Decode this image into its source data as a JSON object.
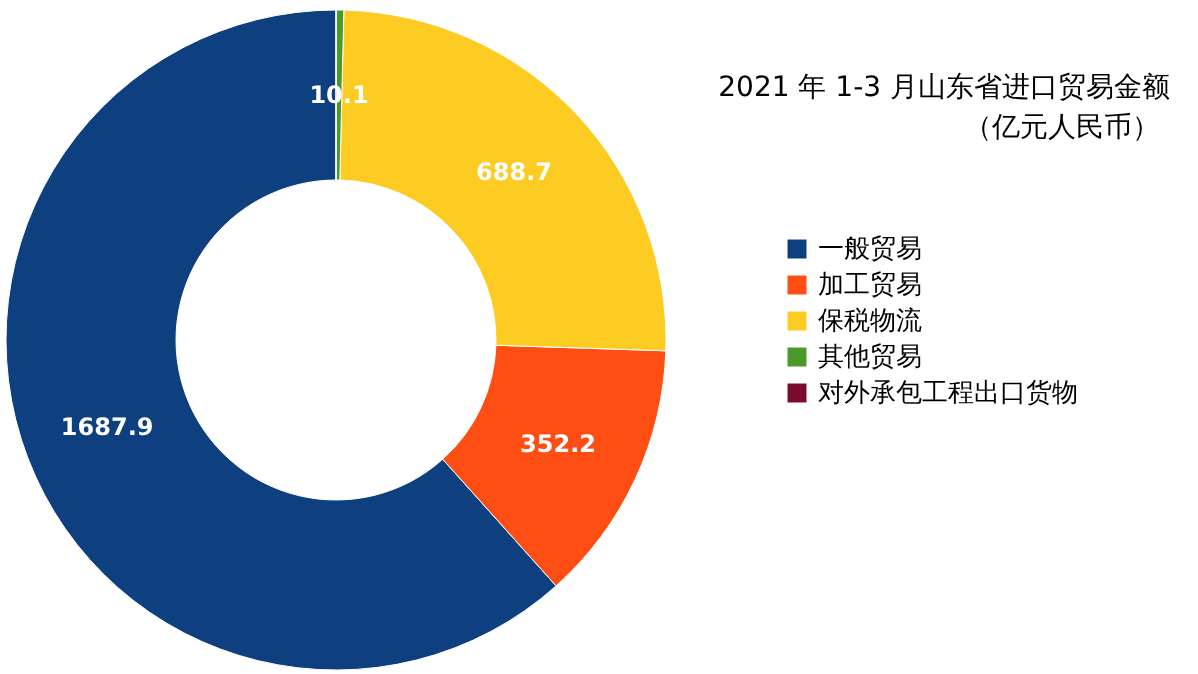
{
  "chart_data": {
    "type": "donut",
    "title": "2021 年 1-3 月山东省进口贸易金额",
    "subtitle": "（亿元人民币）",
    "categories": [
      "一般贸易",
      "加工贸易",
      "保税物流",
      "其他贸易",
      "对外承包工程出口货物"
    ],
    "values": [
      1687.9,
      352.2,
      688.7,
      10.1,
      0.3
    ],
    "value_labels": [
      "1687.9",
      "352.2",
      "688.7",
      "10.1",
      null
    ],
    "colors": [
      "#0e3f7e",
      "#ff4e14",
      "#fdcc23",
      "#4a9a29",
      "#7a0c2e"
    ],
    "legend": "right"
  }
}
